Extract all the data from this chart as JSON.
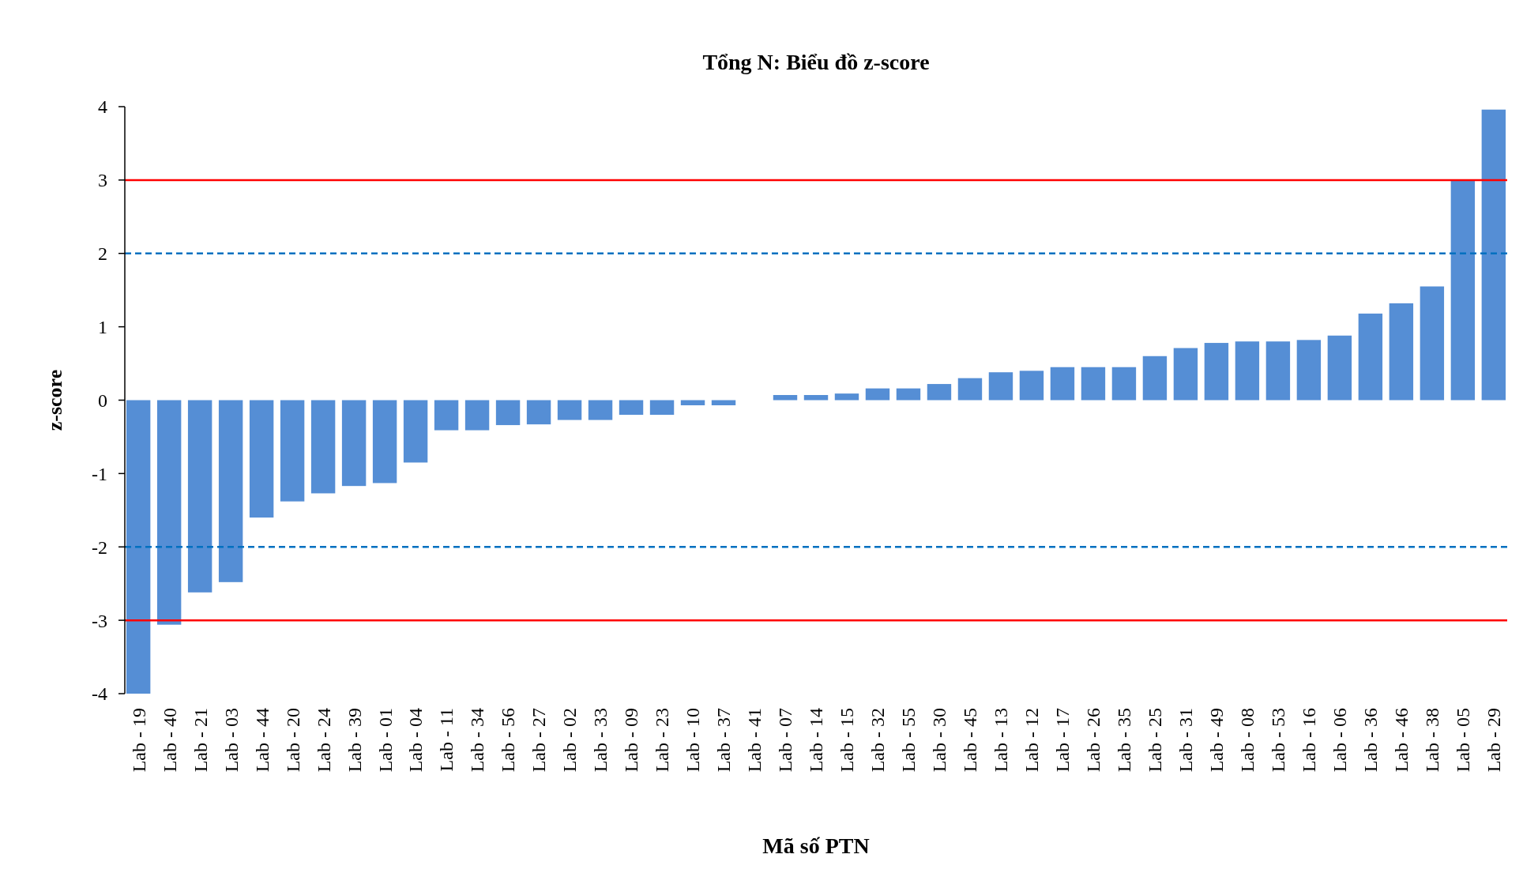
{
  "chart_data": {
    "type": "bar",
    "title": "Tổng N: Biểu đồ z-score",
    "xlabel": "Mã số PTN",
    "ylabel": "z-score",
    "categories": [
      "Lab - 19",
      "Lab - 40",
      "Lab - 21",
      "Lab - 03",
      "Lab - 44",
      "Lab - 20",
      "Lab - 24",
      "Lab - 39",
      "Lab - 01",
      "Lab - 04",
      "Lab - 11",
      "Lab - 34",
      "Lab - 56",
      "Lab - 27",
      "Lab - 02",
      "Lab - 33",
      "Lab - 09",
      "Lab - 23",
      "Lab - 10",
      "Lab - 37",
      "Lab - 41",
      "Lab - 07",
      "Lab - 14",
      "Lab - 15",
      "Lab - 32",
      "Lab - 55",
      "Lab - 30",
      "Lab - 45",
      "Lab - 13",
      "Lab - 12",
      "Lab - 17",
      "Lab - 26",
      "Lab - 35",
      "Lab - 25",
      "Lab - 31",
      "Lab - 49",
      "Lab - 08",
      "Lab - 53",
      "Lab - 16",
      "Lab - 06",
      "Lab - 36",
      "Lab - 46",
      "Lab - 38",
      "Lab - 05",
      "Lab - 29"
    ],
    "values": [
      -4.0,
      -3.06,
      -2.62,
      -2.48,
      -1.6,
      -1.38,
      -1.27,
      -1.17,
      -1.13,
      -0.85,
      -0.41,
      -0.41,
      -0.34,
      -0.33,
      -0.27,
      -0.27,
      -0.2,
      -0.2,
      -0.07,
      -0.07,
      null,
      0.07,
      0.07,
      0.09,
      0.16,
      0.16,
      0.22,
      0.3,
      0.38,
      0.4,
      0.45,
      0.45,
      0.45,
      0.6,
      0.71,
      0.78,
      0.8,
      0.8,
      0.82,
      0.88,
      1.18,
      1.32,
      1.55,
      3.0,
      3.96
    ],
    "color": "#558ed5",
    "ylim": [
      -4,
      4
    ],
    "yticks": [
      -4,
      -3,
      -2,
      -1,
      0,
      1,
      2,
      3,
      4
    ],
    "ref_lines": [
      {
        "axis": "y",
        "value": 3,
        "color": "#ff0000",
        "line_style": "solid"
      },
      {
        "axis": "y",
        "value": -3,
        "color": "#ff0000",
        "line_style": "solid"
      },
      {
        "axis": "y",
        "value": 2,
        "color": "#0070c0",
        "line_style": "dashed"
      },
      {
        "axis": "y",
        "value": -2,
        "color": "#0070c0",
        "line_style": "dashed"
      }
    ]
  }
}
